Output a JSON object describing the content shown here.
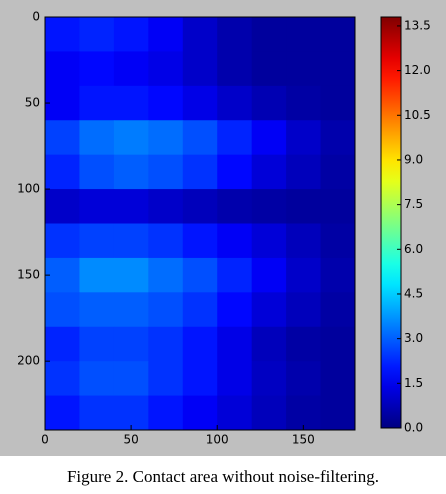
{
  "chart_data": {
    "type": "heatmap",
    "caption": "Figure 2. Contact area without noise-filtering.",
    "xlim": [
      0,
      180
    ],
    "ylim": [
      240,
      0
    ],
    "xticks": [
      0,
      50,
      100,
      150
    ],
    "yticks": [
      0,
      50,
      100,
      150,
      200
    ],
    "colormap": "jet",
    "zlim": [
      0,
      13.8
    ],
    "cticks": [
      {
        "value": 0,
        "label": "0.0"
      },
      {
        "value": 1.5,
        "label": "1.5"
      },
      {
        "value": 3,
        "label": "3.0"
      },
      {
        "value": 4.5,
        "label": "4.5"
      },
      {
        "value": 6,
        "label": "6.0"
      },
      {
        "value": 7.5,
        "label": "7.5"
      },
      {
        "value": 9,
        "label": "9.0"
      },
      {
        "value": 10.5,
        "label": "10.5"
      },
      {
        "value": 12,
        "label": "12.0"
      },
      {
        "value": 13.5,
        "label": "13.5"
      }
    ],
    "z": [
      [
        2.0,
        2.2,
        2.0,
        1.6,
        1.0,
        0.6,
        0.4,
        0.4,
        0.4
      ],
      [
        1.6,
        1.8,
        1.6,
        1.4,
        1.0,
        0.6,
        0.4,
        0.4,
        0.4
      ],
      [
        1.6,
        2.0,
        2.0,
        1.8,
        1.4,
        1.0,
        0.7,
        0.5,
        0.4
      ],
      [
        2.6,
        3.2,
        3.4,
        3.2,
        2.8,
        2.2,
        1.6,
        1.0,
        0.6
      ],
      [
        2.2,
        2.8,
        3.0,
        2.8,
        2.4,
        1.8,
        1.2,
        0.8,
        0.5
      ],
      [
        1.0,
        1.2,
        1.2,
        1.0,
        0.8,
        0.6,
        0.5,
        0.4,
        0.4
      ],
      [
        2.4,
        2.6,
        2.6,
        2.4,
        2.0,
        1.6,
        1.2,
        0.8,
        0.5
      ],
      [
        3.0,
        3.6,
        3.6,
        3.2,
        2.8,
        2.2,
        1.6,
        1.0,
        0.6
      ],
      [
        2.8,
        3.0,
        3.0,
        2.8,
        2.4,
        1.8,
        1.2,
        0.8,
        0.5
      ],
      [
        2.2,
        2.6,
        2.6,
        2.4,
        2.0,
        1.4,
        0.8,
        0.5,
        0.4
      ],
      [
        2.4,
        2.8,
        2.8,
        2.4,
        2.0,
        1.4,
        0.9,
        0.6,
        0.4
      ],
      [
        2.0,
        2.4,
        2.4,
        2.0,
        1.6,
        1.2,
        0.8,
        0.5,
        0.4
      ]
    ]
  }
}
